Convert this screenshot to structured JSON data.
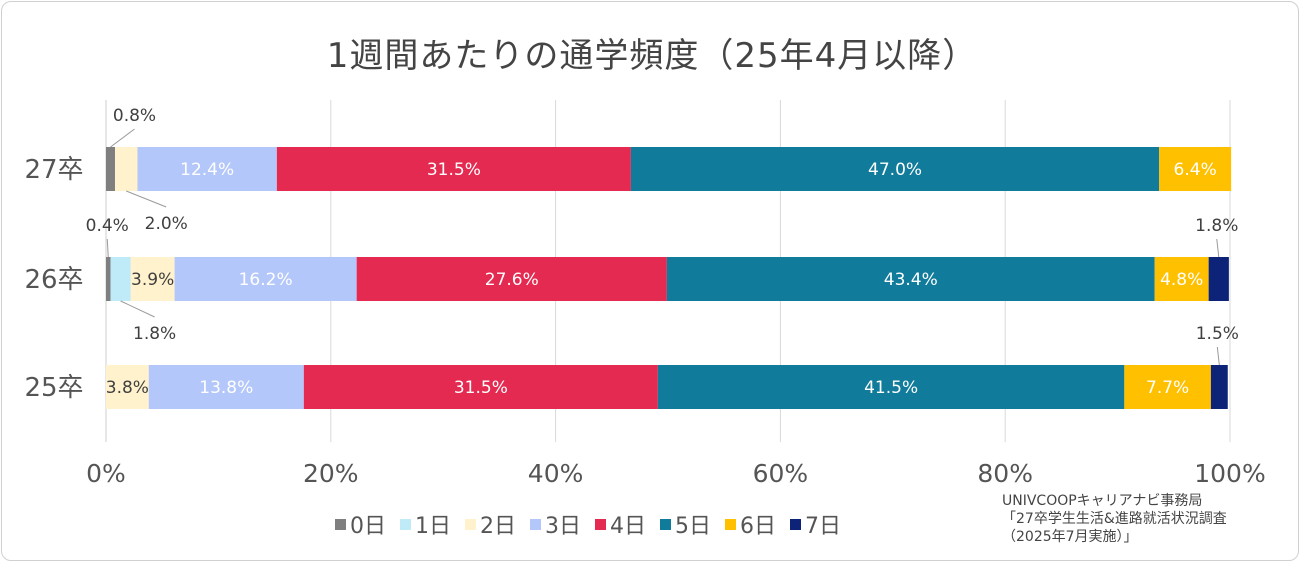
{
  "title": "1週間あたりの通学頻度（25年4月以降）",
  "source": {
    "line1": "UNIVCOOPキャリアナビ事務局",
    "line2": "「27卒学生生活&進路就活状況調査",
    "line3": "（2025年7月実施）」"
  },
  "chart_data": {
    "type": "bar",
    "orientation": "horizontal",
    "stacked": "percent",
    "title": "1週間あたりの通学頻度（25年4月以降）",
    "categories": [
      "27卒",
      "26卒",
      "25卒"
    ],
    "xlim": [
      0,
      100
    ],
    "ticks": [
      "0%",
      "20%",
      "40%",
      "60%",
      "80%",
      "100%"
    ],
    "grid": true,
    "legend_position": "bottom",
    "series": [
      {
        "name": "0日",
        "color": "#7f7f7f",
        "values": [
          0.8,
          0.4,
          0.0
        ],
        "labels": [
          "0.8%",
          "0.4%",
          ""
        ]
      },
      {
        "name": "1日",
        "color": "#bfeaf7",
        "values": [
          0.0,
          1.8,
          0.0
        ],
        "labels": [
          "",
          "1.8%",
          ""
        ]
      },
      {
        "name": "2日",
        "color": "#fff2cc",
        "values": [
          2.0,
          3.9,
          3.8
        ],
        "labels": [
          "2.0%",
          "3.9%",
          "3.8%"
        ]
      },
      {
        "name": "3日",
        "color": "#b4c7fa",
        "values": [
          12.4,
          16.2,
          13.8
        ],
        "labels": [
          "12.4%",
          "16.2%",
          "13.8%"
        ]
      },
      {
        "name": "4日",
        "color": "#e52a51",
        "values": [
          31.5,
          27.6,
          31.5
        ],
        "labels": [
          "31.5%",
          "27.6%",
          "31.5%"
        ]
      },
      {
        "name": "5日",
        "color": "#107b9b",
        "values": [
          47.0,
          43.4,
          41.5
        ],
        "labels": [
          "47.0%",
          "43.4%",
          "41.5%"
        ]
      },
      {
        "name": "6日",
        "color": "#ffc000",
        "values": [
          6.4,
          4.8,
          7.7
        ],
        "labels": [
          "6.4%",
          "4.8%",
          "7.7%"
        ]
      },
      {
        "name": "7日",
        "color": "#0d2378",
        "values": [
          0.0,
          1.8,
          1.5
        ],
        "labels": [
          "",
          "1.8%",
          "1.5%"
        ]
      }
    ]
  }
}
